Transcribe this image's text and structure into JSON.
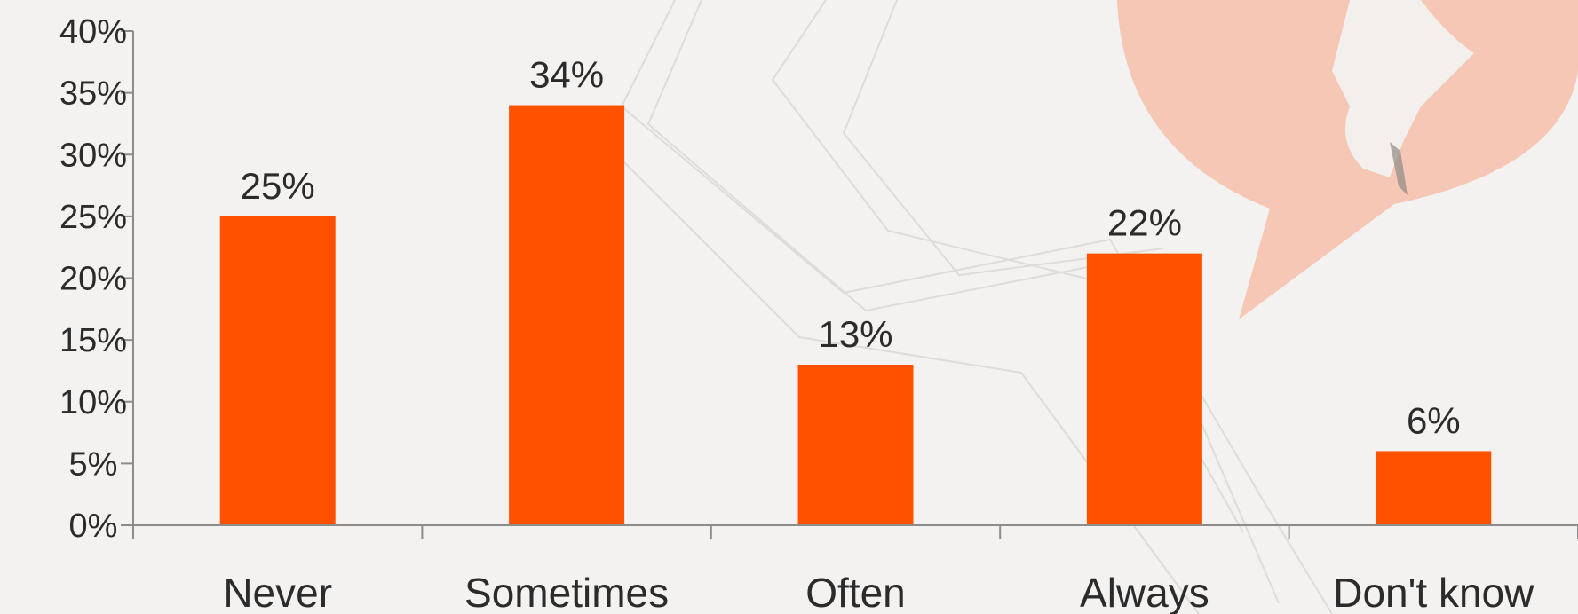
{
  "chart_data": {
    "type": "bar",
    "categories": [
      "Never",
      "Sometimes",
      "Often",
      "Always",
      "Don't know"
    ],
    "values": [
      25,
      34,
      13,
      22,
      6
    ],
    "data_labels": [
      "25%",
      "34%",
      "13%",
      "22%",
      "6%"
    ],
    "y_ticks": [
      "0%",
      "5%",
      "10%",
      "15%",
      "20%",
      "25%",
      "30%",
      "35%",
      "40%"
    ],
    "ylim": [
      0,
      40
    ],
    "y_tick_step": 5,
    "grid": false,
    "legend": false,
    "title": "",
    "xlabel": "",
    "ylabel": ""
  },
  "colors": {
    "bar": "#ff5100",
    "axis": "#8c8c8c",
    "text": "#2b2b2b",
    "decor_bubble": "#f5c2ad",
    "decor_lines": "#d6d4d1"
  },
  "decor": {
    "icon": "speech-bubble-silhouette-icon"
  }
}
